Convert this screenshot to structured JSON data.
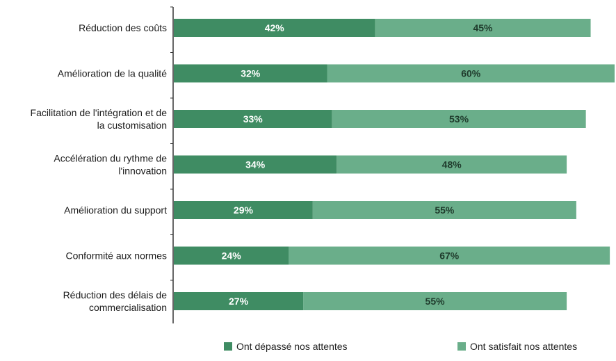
{
  "chart_data": {
    "type": "bar",
    "orientation": "horizontal",
    "stacked": true,
    "categories": [
      [
        "Réduction des coûts"
      ],
      [
        "Amélioration de la qualité"
      ],
      [
        "Facilitation de l'intégration et de",
        "la customisation"
      ],
      [
        "Accélération du rythme de",
        "l'innovation"
      ],
      [
        "Amélioration du support"
      ],
      [
        "Conformité aux normes"
      ],
      [
        "Réduction des délais de",
        "commercialisation"
      ]
    ],
    "series": [
      {
        "name": "Ont dépassé nos attentes",
        "values": [
          42,
          32,
          33,
          34,
          29,
          24,
          27
        ],
        "labels": [
          "42%",
          "32%",
          "33%",
          "34%",
          "29%",
          "24%",
          "27%"
        ],
        "color": "#3f8c63"
      },
      {
        "name": "Ont satisfait nos attentes",
        "values": [
          45,
          60,
          53,
          48,
          55,
          67,
          55
        ],
        "labels": [
          "45%",
          "60%",
          "53%",
          "48%",
          "55%",
          "67%",
          "55%"
        ],
        "color": "#6aae8a"
      }
    ],
    "xlim": [
      0,
      92
    ],
    "legend_position": "bottom",
    "grid": false
  }
}
